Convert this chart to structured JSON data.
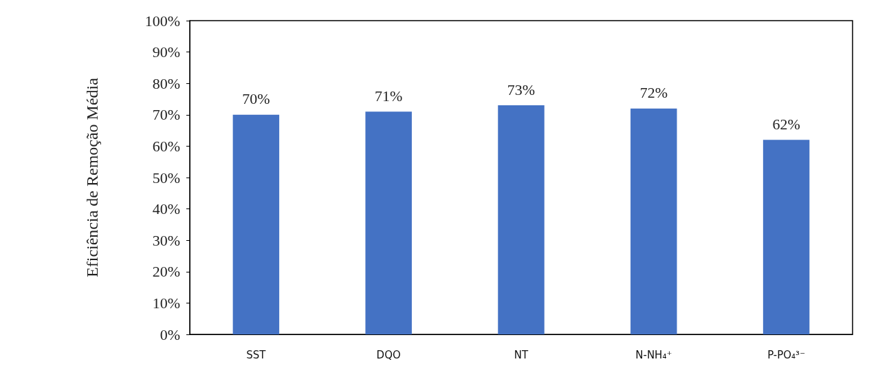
{
  "chart_data": {
    "type": "bar",
    "ylabel": "Eficiência de Remoção Média",
    "categories": [
      "SST",
      "DQO",
      "NT",
      "N-NH₄⁺",
      "P-PO₄³⁻"
    ],
    "values": [
      70,
      71,
      73,
      72,
      62
    ],
    "color": "#4472c4",
    "value_labels": [
      "70%",
      "71%",
      "73%",
      "72%",
      "62%"
    ],
    "ylim": [
      0,
      100
    ],
    "yticks": [
      {
        "value": 0,
        "label": "0%"
      },
      {
        "value": 10,
        "label": "10%"
      },
      {
        "value": 20,
        "label": "20%"
      },
      {
        "value": 30,
        "label": "30%"
      },
      {
        "value": 40,
        "label": "40%"
      },
      {
        "value": 50,
        "label": "50%"
      },
      {
        "value": 60,
        "label": "60%"
      },
      {
        "value": 70,
        "label": "70%"
      },
      {
        "value": 80,
        "label": "80%"
      },
      {
        "value": 90,
        "label": "90%"
      },
      {
        "value": 100,
        "label": "100%"
      }
    ],
    "grid": false
  }
}
